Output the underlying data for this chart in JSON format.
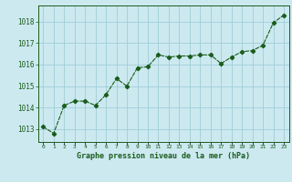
{
  "x": [
    0,
    1,
    2,
    3,
    4,
    5,
    6,
    7,
    8,
    9,
    10,
    11,
    12,
    13,
    14,
    15,
    16,
    17,
    18,
    19,
    20,
    21,
    22,
    23
  ],
  "y": [
    1013.1,
    1012.8,
    1014.1,
    1014.3,
    1014.3,
    1014.1,
    1014.6,
    1015.35,
    1015.0,
    1015.85,
    1015.9,
    1016.45,
    1016.35,
    1016.4,
    1016.4,
    1016.45,
    1016.45,
    1016.05,
    1016.35,
    1016.6,
    1016.65,
    1016.9,
    1017.95,
    1018.3
  ],
  "line_color": "#1a5c1a",
  "marker": "D",
  "marker_size": 2.2,
  "bg_color": "#cce9f0",
  "grid_color": "#a0cdd8",
  "xlabel": "Graphe pression niveau de la mer (hPa)",
  "xlabel_color": "#1a5c1a",
  "tick_color": "#1a5c1a",
  "ylim": [
    1012.4,
    1018.75
  ],
  "yticks": [
    1013,
    1014,
    1015,
    1016,
    1017,
    1018
  ],
  "xlim": [
    -0.5,
    23.5
  ],
  "xtick_labels": [
    "0",
    "1",
    "2",
    "3",
    "4",
    "5",
    "6",
    "7",
    "8",
    "9",
    "10",
    "11",
    "12",
    "13",
    "14",
    "15",
    "16",
    "17",
    "18",
    "19",
    "20",
    "21",
    "22",
    "23"
  ]
}
